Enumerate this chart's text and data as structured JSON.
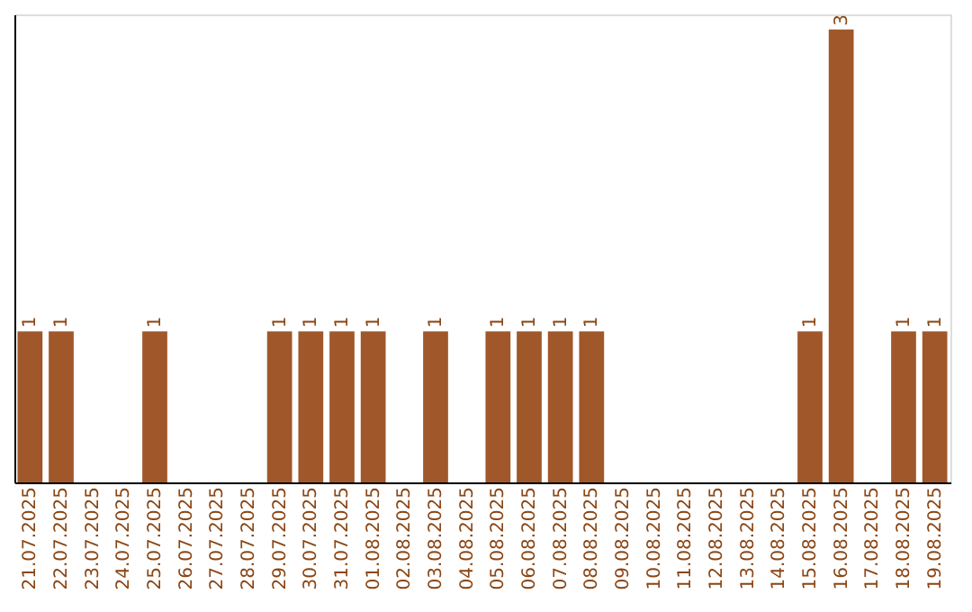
{
  "chart_data": {
    "type": "bar",
    "categories": [
      "21.07.2025",
      "22.07.2025",
      "23.07.2025",
      "24.07.2025",
      "25.07.2025",
      "26.07.2025",
      "27.07.2025",
      "28.07.2025",
      "29.07.2025",
      "30.07.2025",
      "31.07.2025",
      "01.08.2025",
      "02.08.2025",
      "03.08.2025",
      "04.08.2025",
      "05.08.2025",
      "06.08.2025",
      "07.08.2025",
      "08.08.2025",
      "09.08.2025",
      "10.08.2025",
      "11.08.2025",
      "12.08.2025",
      "13.08.2025",
      "14.08.2025",
      "15.08.2025",
      "16.08.2025",
      "17.08.2025",
      "18.08.2025",
      "19.08.2025"
    ],
    "values": [
      1,
      1,
      0,
      0,
      1,
      0,
      0,
      0,
      1,
      1,
      1,
      1,
      0,
      1,
      0,
      1,
      1,
      1,
      1,
      0,
      0,
      0,
      0,
      0,
      0,
      1,
      3,
      0,
      1,
      1
    ],
    "value_labels": [
      "1",
      "1",
      null,
      null,
      "1",
      null,
      null,
      null,
      "1",
      "1",
      "1",
      "1",
      null,
      "1",
      null,
      "1",
      "1",
      "1",
      "1",
      null,
      null,
      null,
      null,
      null,
      null,
      "1",
      "3",
      null,
      "1",
      "1"
    ],
    "color": "#a0572a",
    "ylim": [
      0,
      3.1
    ],
    "tick_labels": "x"
  }
}
